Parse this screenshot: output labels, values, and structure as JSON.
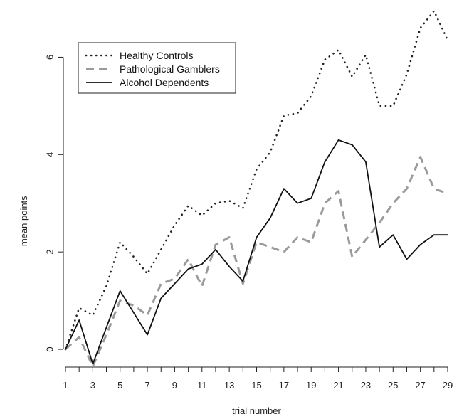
{
  "chart_data": {
    "type": "line",
    "title": "",
    "xlabel": "trial number",
    "ylabel": "mean points",
    "x": [
      1,
      2,
      3,
      4,
      5,
      6,
      7,
      8,
      9,
      10,
      11,
      12,
      13,
      14,
      15,
      16,
      17,
      18,
      19,
      20,
      21,
      22,
      23,
      24,
      25,
      26,
      27,
      28,
      29
    ],
    "xticks": [
      "1",
      "3",
      "5",
      "7",
      "9",
      "11",
      "13",
      "15",
      "17",
      "19",
      "21",
      "23",
      "25",
      "27",
      "29"
    ],
    "yticks": [
      "0",
      "2",
      "4",
      "6"
    ],
    "xlim": [
      1,
      29
    ],
    "ylim": [
      -0.35,
      7.0
    ],
    "grid": false,
    "legend_position": "top-left",
    "series": [
      {
        "name": "Healthy Controls",
        "color": "#222222",
        "style": "dotted",
        "values": [
          0,
          0.85,
          0.7,
          1.3,
          2.2,
          1.9,
          1.55,
          2.05,
          2.55,
          2.95,
          2.75,
          3.0,
          3.05,
          2.9,
          3.7,
          4.05,
          4.8,
          4.85,
          5.2,
          5.95,
          6.15,
          5.6,
          6.05,
          5.0,
          5.0,
          5.65,
          6.6,
          6.95,
          6.35
        ]
      },
      {
        "name": "Pathological Gamblers",
        "color": "#9a9a9a",
        "style": "dashed",
        "values": [
          0,
          0.25,
          -0.35,
          0.3,
          1.0,
          0.9,
          0.7,
          1.35,
          1.45,
          1.85,
          1.3,
          2.15,
          2.3,
          1.35,
          2.2,
          2.1,
          2.0,
          2.3,
          2.2,
          3.0,
          3.25,
          1.9,
          2.25,
          2.6,
          3.0,
          3.3,
          3.95,
          3.3,
          3.2
        ]
      },
      {
        "name": "Alcohol Dependents",
        "color": "#111111",
        "style": "solid",
        "values": [
          0,
          0.6,
          -0.3,
          0.45,
          1.2,
          0.75,
          0.3,
          1.05,
          1.35,
          1.65,
          1.75,
          2.05,
          1.7,
          1.4,
          2.3,
          2.7,
          3.3,
          3.0,
          3.1,
          3.85,
          4.3,
          4.2,
          3.85,
          2.1,
          2.35,
          1.85,
          2.15,
          2.35,
          2.35
        ]
      }
    ]
  }
}
